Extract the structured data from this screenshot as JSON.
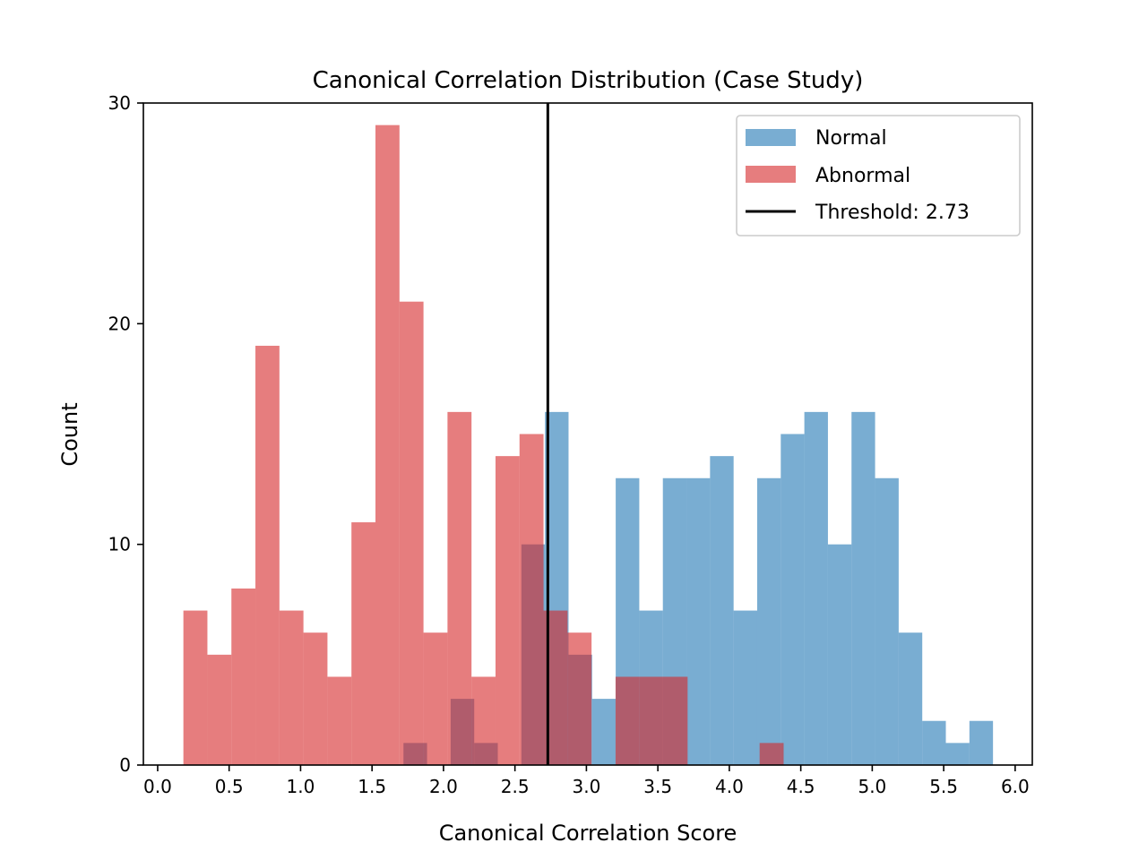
{
  "chart_data": {
    "type": "histogram",
    "title": "Canonical Correlation Distribution (Case Study)",
    "xlabel": "Canonical Correlation Score",
    "ylabel": "Count",
    "xlim": [
      -0.1,
      6.12
    ],
    "ylim": [
      0,
      30
    ],
    "xticks": [
      0.0,
      0.5,
      1.0,
      1.5,
      2.0,
      2.5,
      3.0,
      3.5,
      4.0,
      4.5,
      5.0,
      5.5,
      6.0
    ],
    "xtick_labels": [
      "0.0",
      "0.5",
      "1.0",
      "1.5",
      "2.0",
      "2.5",
      "3.0",
      "3.5",
      "4.0",
      "4.5",
      "5.0",
      "5.5",
      "6.0"
    ],
    "yticks": [
      0,
      10,
      20,
      30
    ],
    "ytick_labels": [
      "0",
      "10",
      "20",
      "30"
    ],
    "legend_position": "top-right",
    "series": [
      {
        "name": "Normal",
        "color": "#1f77b4",
        "alpha": 0.6,
        "bins": [
          {
            "x0": 1.72,
            "x1": 1.885,
            "count": 1
          },
          {
            "x0": 2.05,
            "x1": 2.215,
            "count": 3
          },
          {
            "x0": 2.215,
            "x1": 2.38,
            "count": 1
          },
          {
            "x0": 2.545,
            "x1": 2.71,
            "count": 10
          },
          {
            "x0": 2.71,
            "x1": 2.875,
            "count": 16
          },
          {
            "x0": 2.875,
            "x1": 3.04,
            "count": 5
          },
          {
            "x0": 3.04,
            "x1": 3.205,
            "count": 3
          },
          {
            "x0": 3.205,
            "x1": 3.37,
            "count": 13
          },
          {
            "x0": 3.37,
            "x1": 3.535,
            "count": 7
          },
          {
            "x0": 3.535,
            "x1": 3.7,
            "count": 13
          },
          {
            "x0": 3.7,
            "x1": 3.865,
            "count": 13
          },
          {
            "x0": 3.865,
            "x1": 4.03,
            "count": 14
          },
          {
            "x0": 4.03,
            "x1": 4.195,
            "count": 7
          },
          {
            "x0": 4.195,
            "x1": 4.36,
            "count": 13
          },
          {
            "x0": 4.36,
            "x1": 4.525,
            "count": 15
          },
          {
            "x0": 4.525,
            "x1": 4.69,
            "count": 16
          },
          {
            "x0": 4.69,
            "x1": 4.855,
            "count": 10
          },
          {
            "x0": 4.855,
            "x1": 5.02,
            "count": 16
          },
          {
            "x0": 5.02,
            "x1": 5.185,
            "count": 13
          },
          {
            "x0": 5.185,
            "x1": 5.35,
            "count": 6
          },
          {
            "x0": 5.35,
            "x1": 5.515,
            "count": 2
          },
          {
            "x0": 5.515,
            "x1": 5.68,
            "count": 1
          },
          {
            "x0": 5.68,
            "x1": 5.845,
            "count": 2
          }
        ]
      },
      {
        "name": "Abnormal",
        "color": "#d62728",
        "alpha": 0.6,
        "bins": [
          {
            "x0": 0.18,
            "x1": 0.348,
            "count": 7
          },
          {
            "x0": 0.348,
            "x1": 0.516,
            "count": 5
          },
          {
            "x0": 0.516,
            "x1": 0.684,
            "count": 8
          },
          {
            "x0": 0.684,
            "x1": 0.852,
            "count": 19
          },
          {
            "x0": 0.852,
            "x1": 1.02,
            "count": 7
          },
          {
            "x0": 1.02,
            "x1": 1.188,
            "count": 6
          },
          {
            "x0": 1.188,
            "x1": 1.356,
            "count": 4
          },
          {
            "x0": 1.356,
            "x1": 1.524,
            "count": 11
          },
          {
            "x0": 1.524,
            "x1": 1.692,
            "count": 29
          },
          {
            "x0": 1.692,
            "x1": 1.86,
            "count": 21
          },
          {
            "x0": 1.86,
            "x1": 2.028,
            "count": 6
          },
          {
            "x0": 2.028,
            "x1": 2.196,
            "count": 16
          },
          {
            "x0": 2.196,
            "x1": 2.364,
            "count": 4
          },
          {
            "x0": 2.364,
            "x1": 2.532,
            "count": 14
          },
          {
            "x0": 2.532,
            "x1": 2.7,
            "count": 15
          },
          {
            "x0": 2.7,
            "x1": 2.868,
            "count": 7
          },
          {
            "x0": 2.868,
            "x1": 3.036,
            "count": 6
          },
          {
            "x0": 3.204,
            "x1": 3.372,
            "count": 4
          },
          {
            "x0": 3.372,
            "x1": 3.54,
            "count": 4
          },
          {
            "x0": 3.54,
            "x1": 3.708,
            "count": 4
          },
          {
            "x0": 4.212,
            "x1": 4.38,
            "count": 1
          }
        ]
      }
    ],
    "threshold": {
      "value": 2.73,
      "label": "Threshold: 2.73",
      "color": "#000000"
    }
  }
}
